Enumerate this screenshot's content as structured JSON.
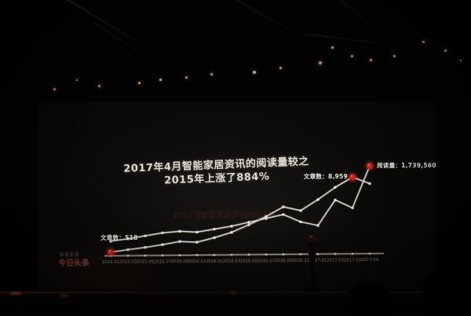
{
  "scene": {
    "title_line1": "2017年4月智能家居资讯的阅读量较之",
    "title_line2": "2015年上涨了884%",
    "ghost_text": "2017年智能家居资讯的阅读量",
    "source_label": "数据来源",
    "logo_text": "今日头条"
  },
  "chart_data": {
    "type": "line",
    "title": "2017年4月智能家居资讯的阅读量较之2015年上涨了884%",
    "categories": [
      "2015.01",
      "2015.03",
      "2015.05",
      "2015.07",
      "2015.09",
      "2015.11",
      "2016.01",
      "2016.03",
      "2016.05",
      "2016.07",
      "2016.09",
      "2016.11",
      "2017.01",
      "2017.02",
      "2017.03",
      "2017.04"
    ],
    "series": [
      {
        "name": "文章数",
        "values": [
          518,
          800,
          1050,
          1350,
          1700,
          1600,
          2100,
          2700,
          3550,
          4500,
          5600,
          5150,
          6400,
          7800,
          8959,
          8200
        ],
        "labeled_points": [
          {
            "index": 0,
            "value": 518,
            "label": "文章数：518"
          },
          {
            "index": 14,
            "value": 8959,
            "label": "文章数：8,959"
          }
        ]
      },
      {
        "name": "阅读量",
        "values": [
          180000,
          230000,
          290000,
          350000,
          380000,
          360000,
          420000,
          480000,
          560000,
          640000,
          720000,
          560000,
          480000,
          1020000,
          850000,
          1739560
        ],
        "labeled_points": [
          {
            "index": 15,
            "value": 1739560,
            "label": "阅读量：1,739,560"
          }
        ]
      }
    ],
    "xlabel": "",
    "ylabel": "",
    "grid": false,
    "legend_position": "none",
    "colors": {
      "line": "#dcd8cf",
      "marker_red": "#c3251b",
      "axis": "#a89f8c",
      "tick_label": "#978e7a"
    }
  }
}
